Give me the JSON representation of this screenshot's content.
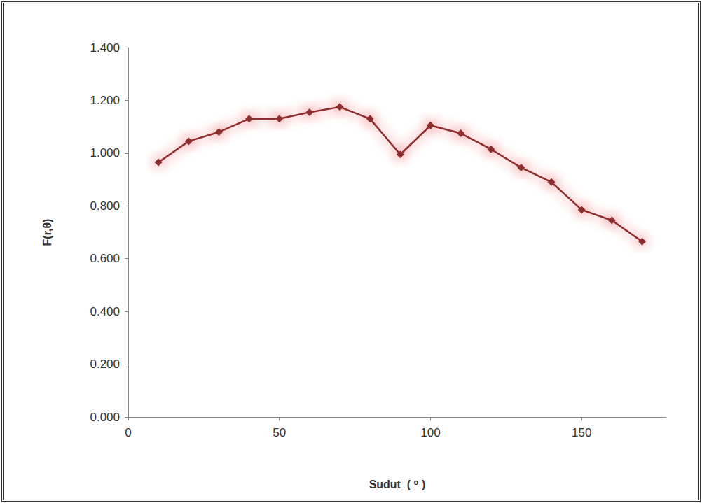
{
  "chart_data": {
    "type": "line",
    "x_label": "Sudut  ( ⁰ )",
    "y_label": "F(r,θ)",
    "x": [
      10,
      20,
      30,
      40,
      50,
      60,
      70,
      80,
      90,
      100,
      110,
      120,
      130,
      140,
      150,
      160,
      170
    ],
    "values": [
      0.965,
      1.045,
      1.08,
      1.13,
      1.13,
      1.155,
      1.175,
      1.13,
      0.995,
      1.105,
      1.075,
      1.015,
      0.945,
      0.89,
      0.785,
      0.745,
      0.665
    ],
    "color": "#8b2e2e",
    "marker": "diamond",
    "xlim": [
      0,
      178
    ],
    "xticks": [
      0,
      50,
      100,
      150
    ],
    "ylim": [
      0,
      1.4
    ],
    "yticks": [
      {
        "value": 0,
        "label": "0.000"
      },
      {
        "value": 0.2,
        "label": "0.200"
      },
      {
        "value": 0.4,
        "label": "0.400"
      },
      {
        "value": 0.6,
        "label": "0.600"
      },
      {
        "value": 0.8,
        "label": "0.800"
      },
      {
        "value": 1.0,
        "label": "1.000"
      },
      {
        "value": 1.2,
        "label": "1.200"
      },
      {
        "value": 1.4,
        "label": "1.400"
      }
    ],
    "grid": false
  }
}
